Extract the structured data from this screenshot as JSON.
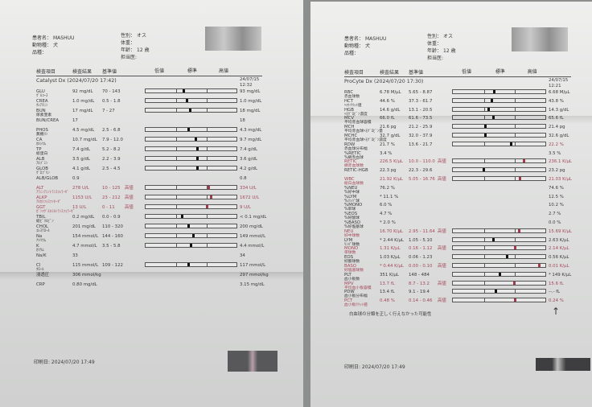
{
  "left": {
    "patient": {
      "name_label": "患者名：",
      "name": "MASHUU",
      "species_label": "動物種：",
      "species": "犬",
      "breed_label": "品種：",
      "sex_label": "性別：",
      "sex": "オス",
      "weight_label": "体重：",
      "age_label": "年齢：",
      "age": "12 歳",
      "vet_label": "担当医:"
    },
    "columns": {
      "item": "検査項目",
      "result": "検査結果",
      "range": "基準値",
      "low": "低値",
      "normal": "標準",
      "high": "高値"
    },
    "section": "Catalyst Dx (2024/07/20 17:42)",
    "prev_date": "24/07/15",
    "prev_time": "12:32",
    "rows": [
      {
        "code": "GLU",
        "jp": "ｸﾞﾙｺｰｽ",
        "result": "92 mg/dL",
        "range": "70 - 143",
        "flag": "",
        "marker": 0.42,
        "prev": "93 mg/dL",
        "bar": true
      },
      {
        "code": "CREA",
        "jp": "ｸﾚｱﾁﾆﾝ",
        "result": "1.0 mg/dL",
        "range": "0.5 - 1.8",
        "flag": "",
        "marker": 0.45,
        "prev": "1.0 mg/dL",
        "bar": true
      },
      {
        "code": "BUN",
        "jp": "尿素窒素",
        "result": "17 mg/dL",
        "range": "7 - 27",
        "flag": "",
        "marker": 0.49,
        "prev": "18 mg/dL",
        "bar": true
      },
      {
        "code": "BUN/CREA",
        "jp": "",
        "result": "17",
        "range": "",
        "flag": "",
        "prev": "18",
        "bar": false
      },
      {
        "code": "PHOS",
        "jp": "無機ﾘﾝ",
        "result": "4.5 mg/dL",
        "range": "2.5 - 6.8",
        "flag": "",
        "marker": 0.47,
        "prev": "4.3 mg/dL",
        "bar": true
      },
      {
        "code": "CA",
        "jp": "ｶﾙｼｳﾑ",
        "result": "10.7 mg/dL",
        "range": "7.9 - 12.0",
        "flag": "",
        "marker": 0.55,
        "prev": "9.7 mg/dL",
        "bar": true
      },
      {
        "code": "TP",
        "jp": "総蛋白",
        "result": "7.4 g/dL",
        "range": "5.2 - 8.2",
        "flag": "",
        "marker": 0.57,
        "prev": "7.4 g/dL",
        "bar": true
      },
      {
        "code": "ALB",
        "jp": "ｱﾙﾌﾞﾐﾝ",
        "result": "3.5 g/dL",
        "range": "2.2 - 3.9",
        "flag": "",
        "marker": 0.57,
        "prev": "3.6 g/dL",
        "bar": true
      },
      {
        "code": "GLOB",
        "jp": "ｸﾞﾛﾌﾞﾘﾝ",
        "result": "4.1 g/dL",
        "range": "2.5 - 4.5",
        "flag": "",
        "marker": 0.57,
        "prev": "4.2 g/dL",
        "bar": true
      },
      {
        "code": "ALB/GLOB",
        "jp": "",
        "result": "0.9",
        "range": "",
        "flag": "",
        "prev": "0.8",
        "bar": false
      },
      {
        "code": "ALT",
        "jp": "ｱﾗﾆﾝｱﾐﾉﾄﾗﾝｽﾌｪﾗｰｾﾞ",
        "result": "278 U/L",
        "range": "10 - 125",
        "flag": "高値",
        "marker": 0.7,
        "prev": "334 U/L",
        "bar": true,
        "high": true
      },
      {
        "code": "ALKP",
        "jp": "ｱﾙｶﾘﾌｫｽﾌｧﾀｰｾﾞ",
        "result": "1153 U/L",
        "range": "23 - 212",
        "flag": "高値",
        "marker": 0.73,
        "prev": "1672 U/L",
        "bar": true,
        "high": true
      },
      {
        "code": "GGT",
        "jp": "ｶﾞﾝﾏｸﾞﾙﾀﾐﾙﾄﾗﾝｽﾌｪﾗｰｾﾞ",
        "result": "13 U/L",
        "range": "0 - 11",
        "flag": "高値",
        "marker": 0.68,
        "prev": "9 U/L",
        "bar": true,
        "high": true
      },
      {
        "code": "TBIL",
        "jp": "総ﾋﾞﾘﾙﾋﾞﾝ",
        "result": "0.2 mg/dL",
        "range": "0.0 - 0.9",
        "flag": "",
        "marker": 0.4,
        "prev": "< 0.1 mg/dL",
        "bar": true
      },
      {
        "code": "CHOL",
        "jp": "ｺﾚｽﾃﾛｰﾙ",
        "result": "201 mg/dL",
        "range": "110 - 320",
        "flag": "",
        "marker": 0.47,
        "prev": "200 mg/dL",
        "bar": true
      },
      {
        "code": "Na",
        "jp": "ﾅﾄﾘｳﾑ",
        "result": "154 mmol/L",
        "range": "144 - 160",
        "flag": "",
        "marker": 0.53,
        "prev": "149 mmol/L",
        "bar": true
      },
      {
        "code": "K",
        "jp": "ｶﾘｳﾑ",
        "result": "4.7 mmol/L",
        "range": "3.5 - 5.8",
        "flag": "",
        "marker": 0.5,
        "prev": "4.4 mmol/L",
        "bar": true
      },
      {
        "code": "Na/K",
        "jp": "",
        "result": "33",
        "range": "",
        "flag": "",
        "prev": "34",
        "bar": false
      },
      {
        "code": "Cl",
        "jp": "ｸﾛｰﾙ",
        "result": "115 mmol/L",
        "range": "109 - 122",
        "flag": "",
        "marker": 0.47,
        "prev": "117 mmol/L",
        "bar": true
      },
      {
        "code": "浸透圧",
        "jp": "",
        "result": "306 mmol/kg",
        "range": "",
        "flag": "",
        "prev": "297 mmol/kg",
        "bar": false
      },
      {
        "code": "CRP",
        "jp": "",
        "result": "0.80 mg/dL",
        "range": "",
        "flag": "",
        "prev": "3.15 mg/dL",
        "bar": false
      }
    ],
    "print_date": "印刷日: 2024/07/20 17:49"
  },
  "right": {
    "patient": {
      "name_label": "患者名：",
      "name": "MASHUU",
      "species_label": "動物種：",
      "species": "犬",
      "breed_label": "品種：",
      "sex_label": "性別：",
      "sex": "オス",
      "weight_label": "体重：",
      "age_label": "年齢：",
      "age": "12 歳",
      "vet_label": "担当医:"
    },
    "columns": {
      "item": "検査項目",
      "result": "検査結果",
      "range": "基準値",
      "low": "低値",
      "normal": "標準",
      "high": "高値"
    },
    "section": "ProCyte Dx (2024/07/20 17:30)",
    "prev_date": "24/07/15",
    "prev_time": "12:21",
    "rows": [
      {
        "code": "RBC",
        "jp": "赤血球数",
        "result": "6.78 M/μL",
        "range": "5.65 - 8.87",
        "flag": "",
        "marker": 0.45,
        "prev": "6.68 M/μL",
        "bar": true
      },
      {
        "code": "HCT",
        "jp": "ﾍﾏﾄｸﾘｯﾄ値",
        "result": "44.6 %",
        "range": "37.3 - 61.7",
        "flag": "",
        "marker": 0.42,
        "prev": "43.8 %",
        "bar": true
      },
      {
        "code": "HGB",
        "jp": "ﾍﾓｸﾞﾛﾋﾞﾝ濃度",
        "result": "14.6 g/dL",
        "range": "13.1 - 20.5",
        "flag": "",
        "marker": 0.38,
        "prev": "14.3 g/dL",
        "bar": true
      },
      {
        "code": "MCV",
        "jp": "平均赤血球容積",
        "result": "66.0 fL",
        "range": "61.6 - 73.5",
        "flag": "",
        "marker": 0.44,
        "prev": "65.6 fL",
        "bar": true
      },
      {
        "code": "MCH",
        "jp": "平均赤血球ﾍﾓｸﾞﾛﾋﾞﾝ量",
        "result": "21.6 pg",
        "range": "21.2 - 25.9",
        "flag": "",
        "marker": 0.35,
        "prev": "21.4 pg",
        "bar": true
      },
      {
        "code": "MCHC",
        "jp": "平均赤血球ﾍﾓｸﾞﾛﾋﾞﾝ濃度",
        "result": "32.7 g/dL",
        "range": "32.0 - 37.9",
        "flag": "",
        "marker": 0.35,
        "prev": "32.6 g/dL",
        "bar": true
      },
      {
        "code": "RDW",
        "jp": "赤血球分布幅",
        "result": "21.7 %",
        "range": "13.6 - 21.7",
        "flag": "",
        "marker": 0.63,
        "prev": "22.2 %",
        "bar": true,
        "prevHigh": true
      },
      {
        "code": "%RETIC",
        "jp": "%網赤血球",
        "result": "3.4 %",
        "range": "",
        "flag": "",
        "prev": "3.5 %",
        "bar": false
      },
      {
        "code": "RETIC",
        "jp": "網赤血球数",
        "result": "226.5 K/μL",
        "range": "10.0 - 110.0",
        "flag": "高値",
        "marker": 0.78,
        "prev": "236.1 K/μL",
        "bar": true,
        "high": true
      },
      {
        "code": "RETIC-HGB",
        "jp": "",
        "result": "22.3 pg",
        "range": "22.3 - 29.6",
        "flag": "",
        "marker": 0.33,
        "prev": "23.2 pg",
        "bar": true
      },
      {
        "code": "WBC",
        "jp": "総白血球数",
        "result": "21.92 K/μL",
        "range": "5.05 - 16.76",
        "flag": "高値",
        "marker": 0.73,
        "prev": "21.03 K/μL",
        "bar": true,
        "high": true
      },
      {
        "code": "%NEU",
        "jp": "%好中球",
        "result": "76.2 %",
        "range": "",
        "flag": "",
        "prev": "74.6 %",
        "bar": false
      },
      {
        "code": "%LYM",
        "jp": "%ﾘﾝﾊﾟ球",
        "result": "* 11.1 %",
        "range": "",
        "flag": "",
        "prev": "12.5 %",
        "bar": false
      },
      {
        "code": "%MONO",
        "jp": "%単球",
        "result": "6.0 %",
        "range": "",
        "flag": "",
        "prev": "10.2 %",
        "bar": false
      },
      {
        "code": "%EOS",
        "jp": "%好酸球",
        "result": "4.7 %",
        "range": "",
        "flag": "",
        "prev": "2.7 %",
        "bar": false
      },
      {
        "code": "%BASO",
        "jp": "%好塩基球",
        "result": "* 2.0 %",
        "range": "",
        "flag": "",
        "prev": "0.0 %",
        "bar": false
      },
      {
        "code": "NEU",
        "jp": "好中球数",
        "result": "16.70 K/μL",
        "range": "2.95 - 11.64",
        "flag": "高値",
        "marker": 0.72,
        "prev": "15.69 K/μL",
        "bar": true,
        "high": true
      },
      {
        "code": "LYM",
        "jp": "ﾘﾝﾊﾟ球数",
        "result": "* 2.44 K/μL",
        "range": "1.05 - 5.10",
        "flag": "",
        "marker": 0.44,
        "prev": "2.63 K/μL",
        "bar": true
      },
      {
        "code": "MONO",
        "jp": "単球数",
        "result": "1.31 K/μL",
        "range": "0.16 - 1.12",
        "flag": "高値",
        "marker": 0.68,
        "prev": "2.14 K/μL",
        "bar": true,
        "high": true
      },
      {
        "code": "EOS",
        "jp": "好酸球数",
        "result": "1.03 K/μL",
        "range": "0.06 - 1.23",
        "flag": "",
        "marker": 0.59,
        "prev": "0.56 K/μL",
        "bar": true
      },
      {
        "code": "BASO",
        "jp": "好塩基球数",
        "result": "* 0.44 K/μL",
        "range": "0.00 - 0.10",
        "flag": "高値",
        "marker": 0.95,
        "prev": "0.01 K/μL",
        "bar": true,
        "high": true
      },
      {
        "code": "PLT",
        "jp": "血小板数",
        "result": "351 K/μL",
        "range": "148 - 484",
        "flag": "",
        "marker": 0.51,
        "prev": "* 149 K/μL",
        "bar": true
      },
      {
        "code": "MPV",
        "jp": "平均血小板容積",
        "result": "13.7 fL",
        "range": "8.7 - 13.2",
        "flag": "高値",
        "marker": 0.67,
        "prev": "15.6 fL",
        "bar": true,
        "high": true
      },
      {
        "code": "PDW",
        "jp": "血小板分布幅",
        "result": "13.4 fL",
        "range": "9.1 - 19.4",
        "flag": "",
        "marker": 0.46,
        "prev": "--.- fL",
        "bar": true
      },
      {
        "code": "PCT",
        "jp": "血小板ｸﾘｯﾄ値",
        "result": "0.48 %",
        "range": "0.14 - 0.46",
        "flag": "高値",
        "marker": 0.68,
        "prev": "0.24 %",
        "bar": true,
        "high": true
      }
    ],
    "note": "白血球の分類を正しく行えなかった可能性",
    "arrow": "↑",
    "print_date": "印刷日: 2024/07/20 17:49"
  },
  "colors": {
    "high": "#a4485a",
    "marker": "#111111"
  }
}
